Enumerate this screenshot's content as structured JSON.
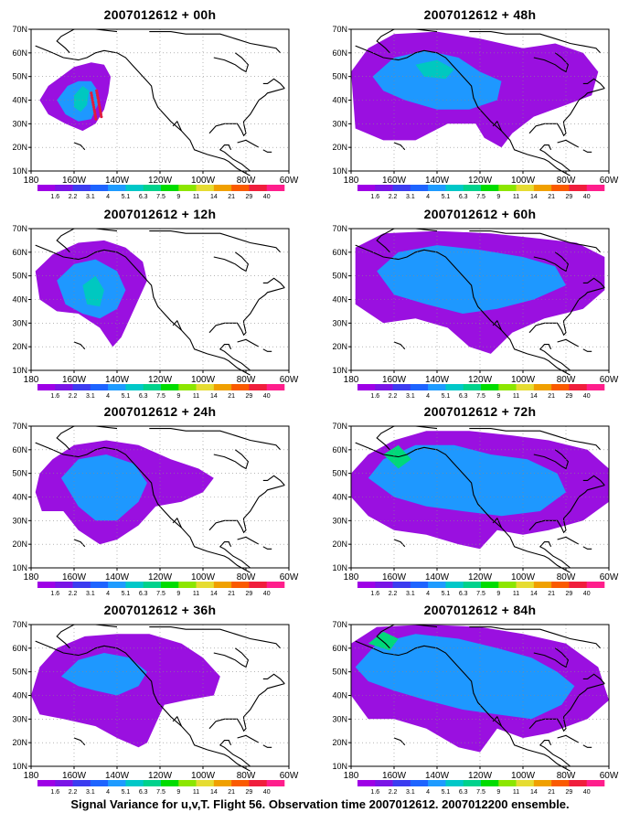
{
  "figure": {
    "caption": "Signal Variance for u,v,T. Flight 56. Observation time 2007012612. 2007012200 ensemble."
  },
  "axes": {
    "lat_labels": [
      "70N",
      "60N",
      "50N",
      "40N",
      "30N",
      "20N",
      "10N"
    ],
    "lon_labels": [
      "180",
      "160W",
      "140W",
      "120W",
      "100W",
      "80W",
      "60W"
    ]
  },
  "colorbar": {
    "labels": [
      "1.6",
      "2.2",
      "3.1",
      "4",
      "5.1",
      "6.3",
      "7.5",
      "9",
      "11",
      "14",
      "21",
      "29",
      "40"
    ],
    "colors": [
      "#9e00e6",
      "#7a14e6",
      "#3c3cf0",
      "#1e64ff",
      "#1e9bff",
      "#00c8c8",
      "#00d28c",
      "#00dc00",
      "#8ce600",
      "#e6dc32",
      "#f0a000",
      "#fa5a00",
      "#f01e3c",
      "#ff1e8c"
    ]
  },
  "colors": {
    "var_violet": "#9a10e0",
    "var_blue": "#1e98ff",
    "var_cyan": "#00c8c0",
    "var_green": "#00d87a",
    "obs_track": "#e01c3c",
    "coast": "#000000"
  },
  "panels": [
    {
      "title": "2007012612 + 00h"
    },
    {
      "title": "2007012612 + 48h"
    },
    {
      "title": "2007012612 + 12h"
    },
    {
      "title": "2007012612 + 60h"
    },
    {
      "title": "2007012612 + 24h"
    },
    {
      "title": "2007012612 + 72h"
    },
    {
      "title": "2007012612 + 36h"
    },
    {
      "title": "2007012612 + 84h"
    }
  ]
}
